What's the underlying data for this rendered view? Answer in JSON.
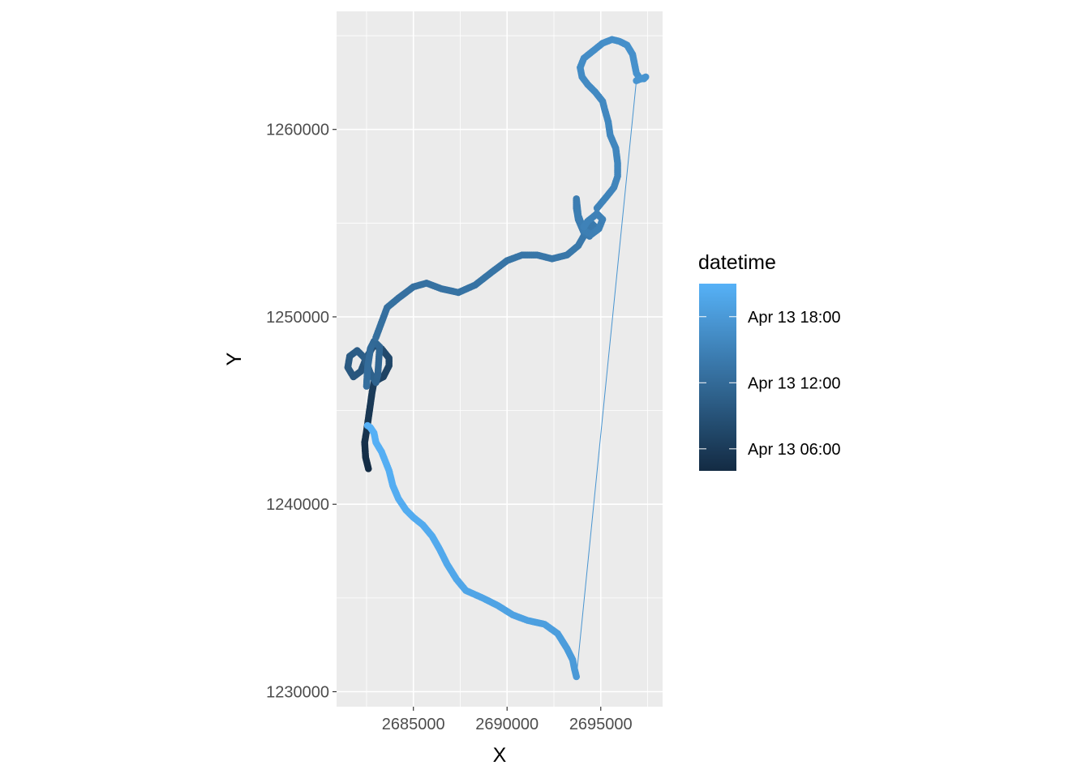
{
  "chart_data": {
    "type": "scatter",
    "title": "",
    "xlabel": "X",
    "ylabel": "Y",
    "xlim": [
      2680900,
      2698300
    ],
    "ylim": [
      1229200,
      1266300
    ],
    "x_ticks": [
      2685000,
      2690000,
      2695000
    ],
    "x_tick_labels": [
      "2685000",
      "2690000",
      "2695000"
    ],
    "y_ticks": [
      1230000,
      1240000,
      1250000,
      1260000
    ],
    "y_tick_labels": [
      "1230000",
      "1240000",
      "1250000",
      "1260000"
    ],
    "grid": true,
    "legend": {
      "title": "datetime",
      "position": "right",
      "type": "colorbar",
      "range": [
        "Apr 13 04:00",
        "Apr 13 21:00"
      ],
      "breaks": [
        "Apr 13 06:00",
        "Apr 13 12:00",
        "Apr 13 18:00"
      ],
      "color_low": "#132B43",
      "color_high": "#56B1F7"
    },
    "series": [
      {
        "x": [
          2682600,
          2682450,
          2682400,
          2682500,
          2682600,
          2682700,
          2682800,
          2682900,
          2683200,
          2683400,
          2683700,
          2683700,
          2683300,
          2682900,
          2682600,
          2682400,
          2682200,
          2681800,
          2681500,
          2681600,
          2682000,
          2682400,
          2682700,
          2683000,
          2683100,
          2683200,
          2682900,
          2682700,
          2682550,
          2682500
        ],
        "y": [
          1241900,
          1242500,
          1243300,
          1243900,
          1244600,
          1245300,
          1246000,
          1246500,
          1246700,
          1246800,
          1247400,
          1247800,
          1248300,
          1248500,
          1248000,
          1247600,
          1247100,
          1246800,
          1247300,
          1247900,
          1248200,
          1247800,
          1247000,
          1246500,
          1246900,
          1248400,
          1248700,
          1248300,
          1247200,
          1246300
        ],
        "datetime": [
          "Apr 13 04:00",
          "Apr 13 04:20",
          "Apr 13 04:40",
          "Apr 13 05:00",
          "Apr 13 05:20",
          "Apr 13 05:40",
          "Apr 13 06:00",
          "Apr 13 06:20",
          "Apr 13 06:40",
          "Apr 13 07:00",
          "Apr 13 07:20",
          "Apr 13 07:40",
          "Apr 13 08:00",
          "Apr 13 08:20",
          "Apr 13 08:40",
          "Apr 13 09:00",
          "Apr 13 09:15",
          "Apr 13 09:30",
          "Apr 13 09:45",
          "Apr 13 10:00",
          "Apr 13 10:15",
          "Apr 13 10:30",
          "Apr 13 10:45",
          "Apr 13 11:00",
          "Apr 13 11:15",
          "Apr 13 11:30",
          "Apr 13 11:45",
          "Apr 13 12:00",
          "Apr 13 12:15",
          "Apr 13 12:30"
        ]
      },
      {
        "x": [
          2683000,
          2683600,
          2684200,
          2685000,
          2685700,
          2686500,
          2687400,
          2688300,
          2689200,
          2690000,
          2690800,
          2691600,
          2692400,
          2693200,
          2693800,
          2694200,
          2694500,
          2694700,
          2694400,
          2694100,
          2693800,
          2693700,
          2693700,
          2693800,
          2694100,
          2694500,
          2694900,
          2695100,
          2694800,
          2694300,
          2694100
        ],
        "y": [
          1248900,
          1250500,
          1251000,
          1251600,
          1251800,
          1251500,
          1251300,
          1251700,
          1252400,
          1253000,
          1253300,
          1253300,
          1253100,
          1253300,
          1253800,
          1254500,
          1255000,
          1254800,
          1254300,
          1254500,
          1255200,
          1255800,
          1256300,
          1255400,
          1254600,
          1254400,
          1254700,
          1255200,
          1255500,
          1255100,
          1254800
        ],
        "datetime": [
          "Apr 13 12:35",
          "Apr 13 12:40",
          "Apr 13 12:45",
          "Apr 13 12:50",
          "Apr 13 12:55",
          "Apr 13 13:00",
          "Apr 13 13:05",
          "Apr 13 13:10",
          "Apr 13 13:15",
          "Apr 13 13:20",
          "Apr 13 13:25",
          "Apr 13 13:30",
          "Apr 13 13:35",
          "Apr 13 13:40",
          "Apr 13 13:45",
          "Apr 13 13:50",
          "Apr 13 13:55",
          "Apr 13 14:00",
          "Apr 13 14:05",
          "Apr 13 14:10",
          "Apr 13 14:15",
          "Apr 13 14:20",
          "Apr 13 14:25",
          "Apr 13 14:30",
          "Apr 13 14:35",
          "Apr 13 14:40",
          "Apr 13 14:45",
          "Apr 13 14:50",
          "Apr 13 14:55",
          "Apr 13 15:00",
          "Apr 13 15:05"
        ]
      },
      {
        "x": [
          2694800,
          2695300,
          2695700,
          2695900,
          2695900,
          2695800,
          2695500,
          2695400,
          2695200,
          2695100,
          2694700,
          2694300,
          2694000,
          2693900,
          2694100,
          2694600,
          2695100,
          2695600,
          2696000,
          2696400,
          2696700,
          2696800,
          2696900,
          2697100,
          2697300,
          2697400,
          2696900
        ],
        "y": [
          1255800,
          1256400,
          1256900,
          1257500,
          1258200,
          1259000,
          1259700,
          1260400,
          1261100,
          1261500,
          1262000,
          1262400,
          1262800,
          1263300,
          1263800,
          1264200,
          1264600,
          1264800,
          1264700,
          1264500,
          1264000,
          1263500,
          1263000,
          1262700,
          1262700,
          1262800,
          1262600
        ],
        "datetime": [
          "Apr 13 15:10",
          "Apr 13 15:15",
          "Apr 13 15:20",
          "Apr 13 15:25",
          "Apr 13 15:30",
          "Apr 13 15:35",
          "Apr 13 15:40",
          "Apr 13 15:45",
          "Apr 13 15:50",
          "Apr 13 15:55",
          "Apr 13 16:00",
          "Apr 13 16:05",
          "Apr 13 16:10",
          "Apr 13 16:15",
          "Apr 13 16:20",
          "Apr 13 16:25",
          "Apr 13 16:30",
          "Apr 13 16:35",
          "Apr 13 16:40",
          "Apr 13 16:45",
          "Apr 13 16:50",
          "Apr 13 16:55",
          "Apr 13 17:00",
          "Apr 13 17:05",
          "Apr 13 17:10",
          "Apr 13 17:15",
          "Apr 13 17:20"
        ]
      },
      {
        "x": [
          2693700,
          2693600,
          2693500,
          2693200,
          2692700,
          2692000,
          2691100,
          2690300,
          2689500,
          2688700,
          2687800,
          2687300,
          2686800,
          2686400,
          2686000,
          2685500,
          2685000,
          2684600,
          2684200,
          2683900,
          2683700,
          2683300,
          2683000,
          2682900,
          2682700,
          2682550
        ],
        "y": [
          1230800,
          1231200,
          1231700,
          1232300,
          1233100,
          1233600,
          1233800,
          1234100,
          1234600,
          1235000,
          1235400,
          1236000,
          1236800,
          1237600,
          1238300,
          1238900,
          1239300,
          1239700,
          1240300,
          1241000,
          1241800,
          1242800,
          1243300,
          1243800,
          1244100,
          1244200
        ],
        "datetime": [
          "Apr 13 17:50",
          "Apr 13 18:00",
          "Apr 13 18:10",
          "Apr 13 18:20",
          "Apr 13 18:30",
          "Apr 13 18:40",
          "Apr 13 18:50",
          "Apr 13 19:00",
          "Apr 13 19:10",
          "Apr 13 19:20",
          "Apr 13 19:30",
          "Apr 13 19:40",
          "Apr 13 19:50",
          "Apr 13 20:00",
          "Apr 13 20:05",
          "Apr 13 20:10",
          "Apr 13 20:15",
          "Apr 13 20:20",
          "Apr 13 20:25",
          "Apr 13 20:30",
          "Apr 13 20:35",
          "Apr 13 20:40",
          "Apr 13 20:45",
          "Apr 13 20:50",
          "Apr 13 20:55",
          "Apr 13 21:00"
        ]
      }
    ]
  }
}
